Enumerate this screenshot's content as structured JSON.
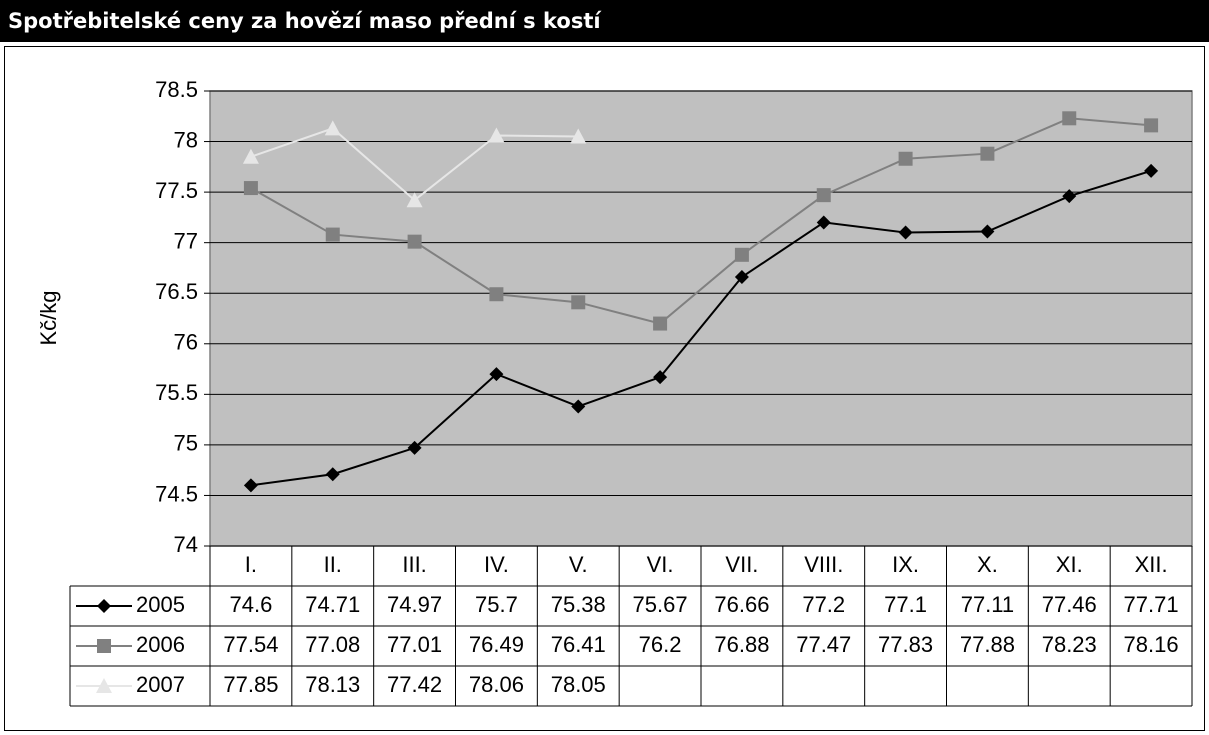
{
  "chart_data": {
    "type": "line",
    "title": "Spotřebitelské ceny za hovězí maso přední s kostí",
    "y_label": "Kč/kg",
    "categories": [
      "I.",
      "II.",
      "III.",
      "IV.",
      "V.",
      "VI.",
      "VII.",
      "VIII.",
      "IX.",
      "X.",
      "XI.",
      "XII."
    ],
    "series": [
      {
        "name": "2005",
        "color": "#000000",
        "marker": "diamond",
        "values": [
          74.6,
          74.71,
          74.97,
          75.7,
          75.38,
          75.67,
          76.66,
          77.2,
          77.1,
          77.11,
          77.46,
          77.71
        ]
      },
      {
        "name": "2006",
        "color": "#808080",
        "marker": "square",
        "values": [
          77.54,
          77.08,
          77.01,
          76.49,
          76.41,
          76.2,
          76.88,
          77.47,
          77.83,
          77.88,
          78.23,
          78.16
        ]
      },
      {
        "name": "2007",
        "color": "#e6e6e6",
        "marker": "triangle",
        "values": [
          77.85,
          78.13,
          77.42,
          78.06,
          78.05,
          null,
          null,
          null,
          null,
          null,
          null,
          null
        ]
      }
    ],
    "ylim": [
      74,
      78.5
    ],
    "yticks": [
      74,
      74.5,
      75,
      75.5,
      76,
      76.5,
      77,
      77.5,
      78,
      78.5
    ],
    "grid": true,
    "plot_background": "#c0c0c0",
    "data_table": true
  }
}
